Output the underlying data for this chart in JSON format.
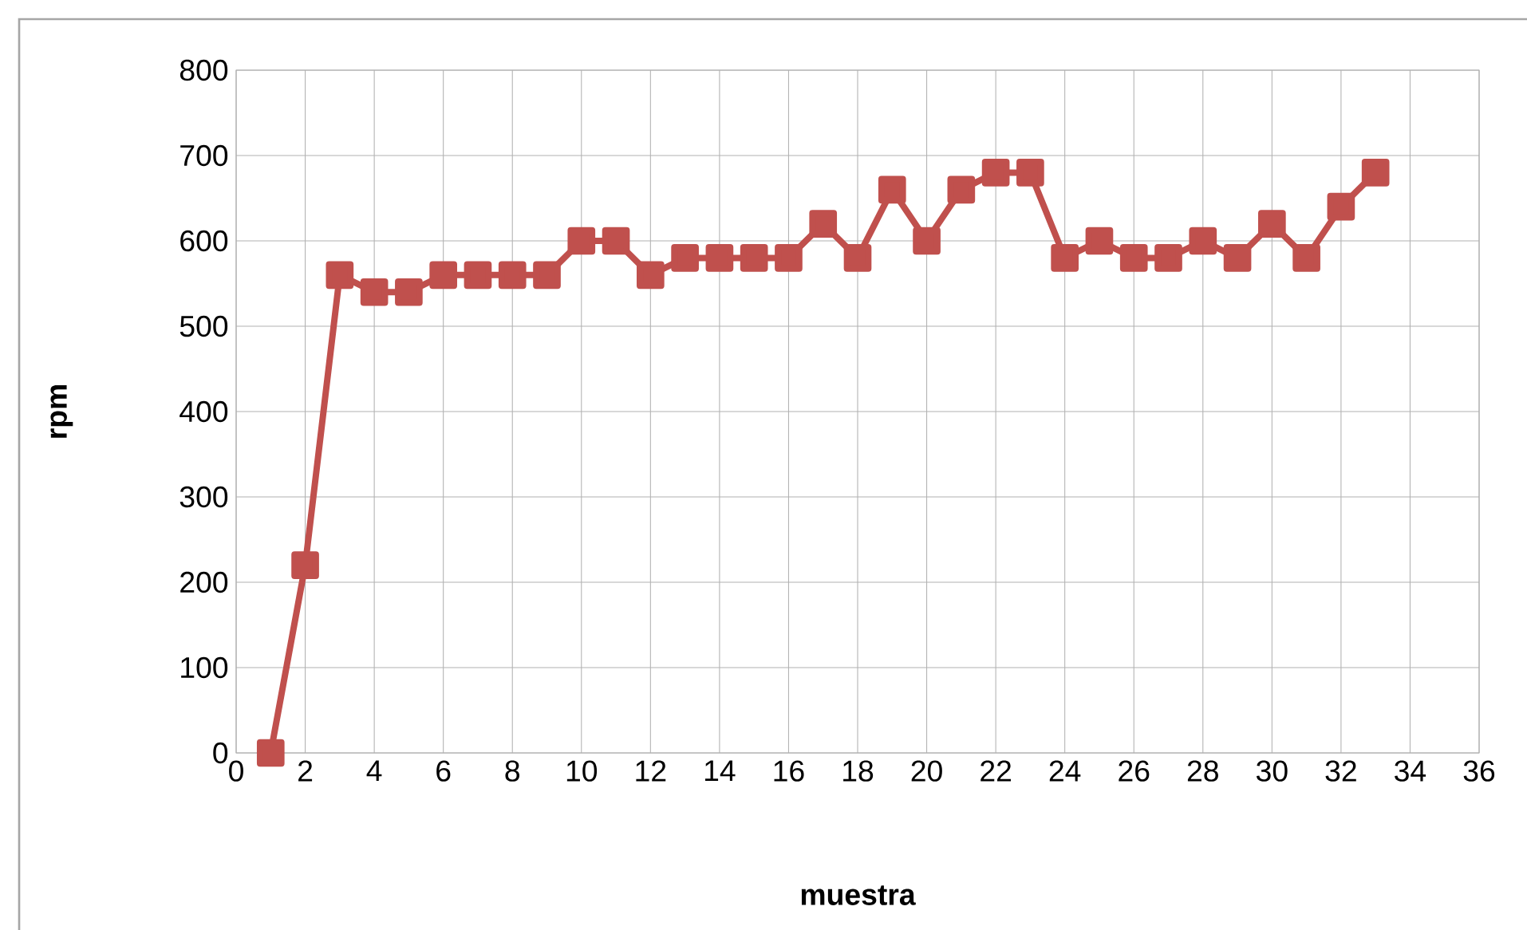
{
  "chart_data": {
    "type": "line",
    "xlabel": "muestra",
    "ylabel": "rpm",
    "x": [
      1,
      2,
      3,
      4,
      5,
      6,
      7,
      8,
      9,
      10,
      11,
      12,
      13,
      14,
      15,
      16,
      17,
      18,
      19,
      20,
      21,
      22,
      23,
      24,
      25,
      26,
      27,
      28,
      29,
      30,
      31,
      32,
      33
    ],
    "series": [
      {
        "color": "#c0504d",
        "values": [
          0,
          220,
          560,
          540,
          540,
          560,
          560,
          560,
          560,
          600,
          600,
          560,
          580,
          580,
          580,
          580,
          620,
          580,
          660,
          600,
          660,
          680,
          680,
          580,
          600,
          580,
          580,
          600,
          580,
          620,
          580,
          640,
          680
        ]
      }
    ],
    "xlim": [
      0,
      36
    ],
    "xticks": [
      0,
      2,
      4,
      6,
      8,
      10,
      12,
      14,
      16,
      18,
      20,
      22,
      24,
      26,
      28,
      30,
      32,
      34,
      36
    ],
    "ylim": [
      0,
      800
    ],
    "yticks": [
      0,
      100,
      200,
      300,
      400,
      500,
      600,
      700,
      800
    ],
    "grid": true,
    "marker": "square",
    "line_style": "solid"
  }
}
